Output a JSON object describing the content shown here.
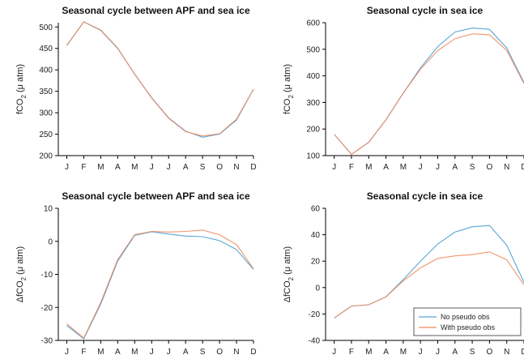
{
  "colors": {
    "no_pseudo": "#5aa7d6",
    "with_pseudo": "#ef8a5a",
    "mixed": "#a07a8a"
  },
  "chart_data": [
    {
      "type": "line",
      "title": "Seasonal cycle between APF and sea ice",
      "ylabel": "fCO2 (μ atm)",
      "ylabel_base": "fCO",
      "ylabel_sub": "2",
      "ylabel_rest": " (μ atm)",
      "categories": [
        "J",
        "F",
        "M",
        "A",
        "M",
        "J",
        "J",
        "A",
        "S",
        "O",
        "N",
        "D"
      ],
      "ylim": [
        200,
        510
      ],
      "yticks": [
        200,
        250,
        300,
        350,
        400,
        450,
        500
      ],
      "series": [
        {
          "key": "no_pseudo",
          "values": [
            457,
            512,
            492,
            450,
            390,
            335,
            288,
            257,
            243,
            250,
            283,
            355
          ]
        },
        {
          "key": "with_pseudo",
          "values": [
            457,
            512,
            493,
            451,
            390,
            334,
            287,
            256,
            246,
            251,
            285,
            355
          ]
        }
      ]
    },
    {
      "type": "line",
      "title": "Seasonal cycle in sea ice",
      "ylabel": "fCO2 (μ atm)",
      "ylabel_base": "fCO",
      "ylabel_sub": "2",
      "ylabel_rest": " (μ atm)",
      "categories": [
        "J",
        "F",
        "M",
        "A",
        "M",
        "J",
        "J",
        "A",
        "S",
        "O",
        "N",
        "D"
      ],
      "ylim": [
        100,
        600
      ],
      "yticks": [
        100,
        200,
        300,
        400,
        500,
        600
      ],
      "series": [
        {
          "key": "no_pseudo",
          "values": [
            180,
            105,
            150,
            235,
            335,
            430,
            510,
            565,
            580,
            575,
            505,
            375
          ]
        },
        {
          "key": "with_pseudo",
          "values": [
            180,
            105,
            150,
            235,
            335,
            425,
            495,
            540,
            558,
            555,
            495,
            370
          ]
        }
      ]
    },
    {
      "type": "line",
      "title": "Seasonal cycle between APF and sea ice",
      "ylabel": "ΔfCO2 (μ atm)",
      "ylabel_base": "ΔfCO",
      "ylabel_sub": "2",
      "ylabel_rest": " (μ atm)",
      "categories": [
        "J",
        "F",
        "M",
        "A",
        "M",
        "J",
        "J",
        "A",
        "S",
        "O",
        "N",
        "D"
      ],
      "ylim": [
        -30,
        10
      ],
      "yticks": [
        -30,
        -20,
        -10,
        0,
        10
      ],
      "series": [
        {
          "key": "no_pseudo",
          "values": [
            -25.5,
            -29.5,
            -19,
            -6,
            1.8,
            2.9,
            2.2,
            1.6,
            1.4,
            0.2,
            -2.5,
            -8.5
          ]
        },
        {
          "key": "with_pseudo",
          "values": [
            -25,
            -29.3,
            -18.5,
            -5.5,
            2,
            3,
            2.8,
            3,
            3.4,
            2,
            -1,
            -8.3
          ]
        }
      ]
    },
    {
      "type": "line",
      "title": "Seasonal cycle in sea ice",
      "ylabel": "ΔfCO2 (μ atm)",
      "ylabel_base": "ΔfCO",
      "ylabel_sub": "2",
      "ylabel_rest": " (μ atm)",
      "categories": [
        "J",
        "F",
        "M",
        "A",
        "M",
        "J",
        "J",
        "A",
        "S",
        "O",
        "N",
        "D"
      ],
      "ylim": [
        -40,
        60
      ],
      "yticks": [
        -40,
        -20,
        0,
        20,
        40,
        60
      ],
      "legend": "bottom-right",
      "series": [
        {
          "key": "no_pseudo",
          "name": "No pseudo obs",
          "values": [
            -23,
            -14,
            -13,
            -7,
            6,
            20,
            33,
            42,
            46,
            47,
            32,
            4
          ]
        },
        {
          "key": "with_pseudo",
          "name": "With pseudo obs",
          "values": [
            -23,
            -14,
            -13,
            -7,
            5,
            15,
            22,
            24,
            25,
            27,
            21,
            2
          ]
        }
      ]
    }
  ]
}
